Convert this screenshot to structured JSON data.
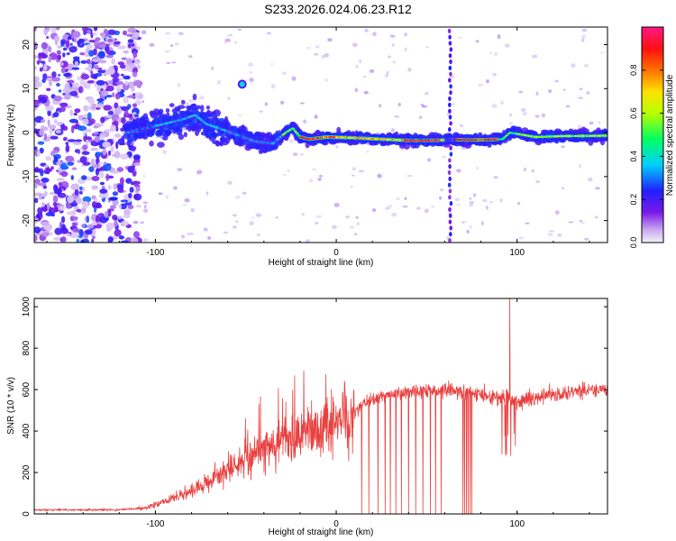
{
  "figure": {
    "title": "S233.2026.024.06.23.R12"
  },
  "chart_data": [
    {
      "type": "heatmap",
      "xlabel": "Height of straight line (km)",
      "ylabel": "Frequency (Hz)",
      "xlim": [
        -167,
        150
      ],
      "ylim": [
        -25,
        24
      ],
      "xticks": [
        -100,
        0,
        100
      ],
      "xtick_labels": [
        "-100",
        "0",
        "100"
      ],
      "yticks": [
        -20,
        -10,
        0,
        10,
        20
      ],
      "ytick_labels": [
        "-20",
        "-10",
        "0",
        "10",
        "20"
      ],
      "grid": false,
      "colorbar": {
        "label": "Normalized spectral amplitude",
        "range": [
          0,
          1
        ],
        "ticks": [
          0,
          0.2,
          0.4,
          0.6,
          0.8
        ],
        "tick_labels": [
          "0.0",
          "0.2",
          "0.4",
          "0.6",
          "0.8"
        ],
        "colormap": "rainbow (violet-blue-cyan-green-yellow-orange-red-pink)"
      },
      "ridge": {
        "description": "dominant frequency track",
        "x": [
          -115,
          -105,
          -95,
          -85,
          -78,
          -72,
          -65,
          -55,
          -45,
          -35,
          -28,
          -24,
          -20,
          -15,
          -5,
          10,
          20,
          30,
          40,
          50,
          60,
          65,
          75,
          85,
          92,
          96,
          110,
          125,
          150
        ],
        "y": [
          0,
          1,
          2,
          3,
          4,
          2,
          1,
          -0.5,
          -2,
          -2.5,
          0,
          1,
          -1,
          -1.5,
          -1,
          -1.2,
          -1.4,
          -1.6,
          -1.8,
          -1.8,
          -1.7,
          -1.6,
          -1.7,
          -1.6,
          -1.5,
          0,
          -1,
          -0.8,
          -0.7
        ]
      },
      "spike": {
        "x": 63,
        "description": "vertical broadband stripe"
      }
    },
    {
      "type": "line",
      "xlabel": "Height of straight line (km)",
      "ylabel": "SNR (10 * v/v)",
      "xlim": [
        -167,
        150
      ],
      "ylim": [
        0,
        1040
      ],
      "xticks": [
        -100,
        0,
        100
      ],
      "xtick_labels": [
        "-100",
        "0",
        "100"
      ],
      "yticks": [
        0,
        200,
        400,
        600,
        800,
        1000
      ],
      "ytick_labels": [
        "0",
        "200",
        "400",
        "600",
        "800",
        "1000"
      ],
      "grid": false,
      "line_color": "#e8403f",
      "envelope": {
        "x": [
          -167,
          -120,
          -105,
          -95,
          -80,
          -65,
          -55,
          -45,
          -30,
          -15,
          0,
          10,
          15,
          25,
          40,
          55,
          60,
          70,
          80,
          90,
          100,
          110,
          120,
          130,
          140,
          150
        ],
        "y": [
          20,
          20,
          30,
          60,
          110,
          180,
          240,
          290,
          340,
          390,
          440,
          490,
          530,
          570,
          590,
          595,
          600,
          590,
          575,
          560,
          545,
          560,
          575,
          590,
          600,
          590
        ]
      },
      "peaks": [
        {
          "x": -18,
          "y": 690
        },
        {
          "x": 96,
          "y": 1040
        }
      ],
      "dropouts": [
        {
          "x": 14,
          "y": 0
        },
        {
          "x": 18,
          "y": 0
        },
        {
          "x": 23,
          "y": 0
        },
        {
          "x": 27,
          "y": 0
        },
        {
          "x": 30,
          "y": 0
        },
        {
          "x": 33,
          "y": 0
        },
        {
          "x": 36,
          "y": 0
        },
        {
          "x": 40,
          "y": 0
        },
        {
          "x": 44,
          "y": 0
        },
        {
          "x": 48,
          "y": 0
        },
        {
          "x": 52,
          "y": 0
        },
        {
          "x": 55,
          "y": 0
        },
        {
          "x": 58,
          "y": 0
        },
        {
          "x": 70,
          "y": 0
        },
        {
          "x": 71,
          "y": 0
        },
        {
          "x": 72,
          "y": 0
        },
        {
          "x": 73,
          "y": 0
        },
        {
          "x": 74,
          "y": 0
        },
        {
          "x": 75,
          "y": 0
        }
      ]
    }
  ]
}
